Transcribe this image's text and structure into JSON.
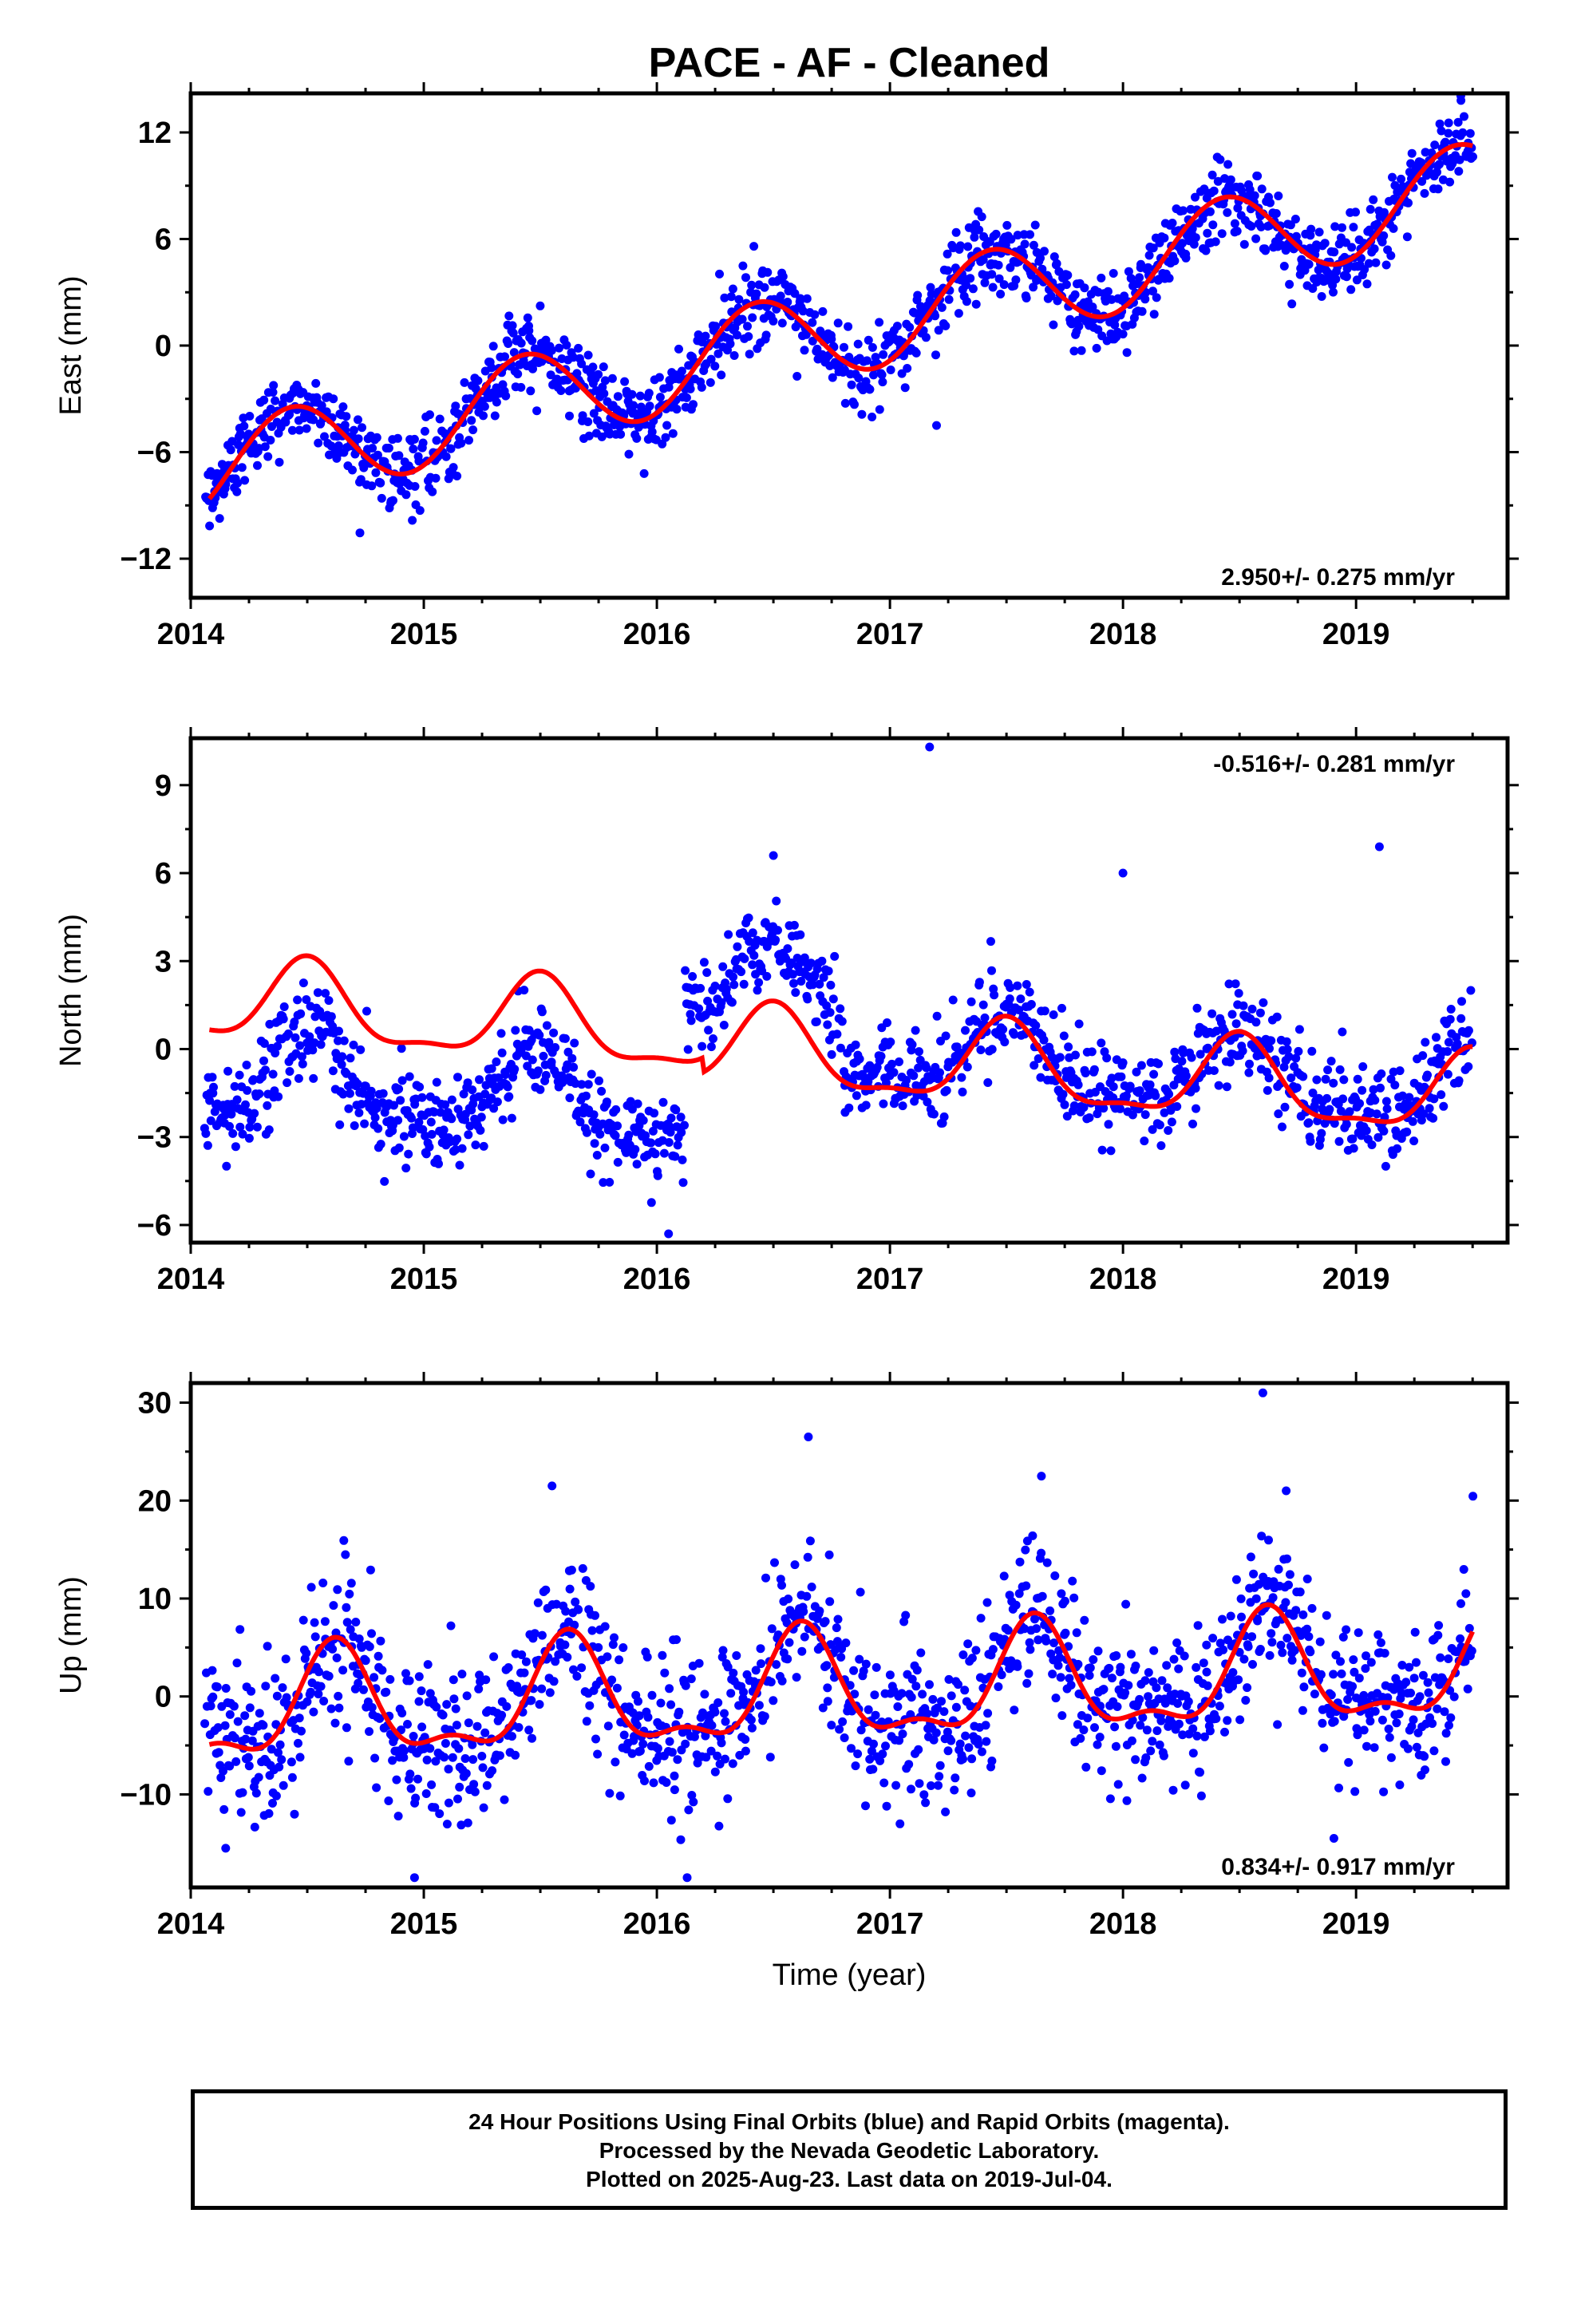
{
  "title": "PACE  - AF - Cleaned",
  "footer": {
    "line1": "24 Hour Positions Using Final Orbits (blue) and Rapid Orbits (magenta).",
    "line2": "Processed by the Nevada Geodetic Laboratory.",
    "line3": "Plotted on 2025-Aug-23. Last data on 2019-Jul-04."
  },
  "colors": {
    "points": "#0000ff",
    "fit": "#ff0000",
    "axis": "#000000"
  },
  "chart_data": [
    {
      "type": "scatter",
      "ylabel": "East (mm)",
      "xlabel": "",
      "xlim": [
        2014.0,
        2019.65
      ],
      "ylim": [
        -14.2,
        14.2
      ],
      "xticks": [
        2014,
        2015,
        2016,
        2017,
        2018,
        2019
      ],
      "yticks": [
        -12,
        -6,
        0,
        6,
        12
      ],
      "rate_label": "2.950+/- 0.275 mm/yr",
      "rate_position": "bottom-right",
      "fit": {
        "name": "fit",
        "t0": 2014.08,
        "t1": 2019.5,
        "offset": -7.1,
        "trend": 2.95,
        "annual_amp": 2.6,
        "annual_peak": 2014.43,
        "semiannual_amp": 0.0,
        "semiannual_peak": 2014.0,
        "steps": []
      },
      "series": [
        {
          "name": "Final Orbits",
          "color": "#0000ff",
          "t_start": 2014.06,
          "t_end": 2019.5,
          "count": 1550,
          "noise": 1.1,
          "gaps": [],
          "offset_adjust": [],
          "outliers": [
            [
              2015.45,
              1.1
            ],
            [
              2017.2,
              -4.5
            ],
            [
              2018.45,
              10.2
            ],
            [
              2019.45,
              13.8
            ]
          ]
        }
      ]
    },
    {
      "type": "scatter",
      "ylabel": "North (mm)",
      "xlabel": "",
      "xlim": [
        2014.0,
        2019.65
      ],
      "ylim": [
        -6.6,
        10.6
      ],
      "xticks": [
        2014,
        2015,
        2016,
        2017,
        2018,
        2019
      ],
      "yticks": [
        -6,
        -3,
        0,
        3,
        6,
        9
      ],
      "rate_label": "-0.516+/- 0.281 mm/yr",
      "rate_position": "top-right",
      "fit": {
        "name": "fit",
        "t0": 2014.08,
        "t1": 2019.5,
        "offset": 1.6,
        "trend": -0.52,
        "annual_amp": 1.35,
        "annual_peak": 2014.5,
        "semiannual_amp": 0.45,
        "semiannual_peak": 2014.5,
        "steps": [
          [
            2016.2,
            -0.5
          ]
        ]
      },
      "series": [
        {
          "name": "Final Orbits",
          "color": "#0000ff",
          "t_start": 2014.06,
          "t_end": 2019.5,
          "count": 1400,
          "noise": 0.8,
          "gaps": [],
          "offset_adjust": [
            [
              2014.0,
              2016.12,
              -2.7
            ],
            [
              2016.12,
              2016.8,
              2.0
            ],
            [
              2016.8,
              2019.6,
              0.3
            ]
          ],
          "outliers": [
            [
              2017.17,
              10.3
            ],
            [
              2019.1,
              6.9
            ],
            [
              2018.0,
              6.0
            ],
            [
              2016.5,
              6.6
            ],
            [
              2016.05,
              -6.3
            ]
          ]
        }
      ]
    },
    {
      "type": "scatter",
      "ylabel": "Up (mm)",
      "xlabel": "Time (year)",
      "xlim": [
        2014.0,
        2019.65
      ],
      "ylim": [
        -19.5,
        32.0
      ],
      "xticks": [
        2014,
        2015,
        2016,
        2017,
        2018,
        2019
      ],
      "yticks": [
        -10,
        0,
        10,
        20,
        30
      ],
      "rate_label": "0.834+/- 0.917 mm/yr",
      "rate_position": "bottom-right",
      "fit": {
        "name": "fit",
        "t0": 2014.08,
        "t1": 2019.5,
        "offset": -1.8,
        "trend": 0.83,
        "annual_amp": 5.2,
        "annual_peak": 2014.62,
        "semiannual_amp": 2.2,
        "semiannual_peak": 2014.62,
        "steps": []
      },
      "series": [
        {
          "name": "Final Orbits",
          "color": "#0000ff",
          "t_start": 2014.06,
          "t_end": 2019.5,
          "count": 1500,
          "noise": 4.0,
          "gaps": [],
          "offset_adjust": [],
          "outliers": [
            [
              2018.6,
              31.0
            ],
            [
              2016.65,
              26.5
            ],
            [
              2015.55,
              21.5
            ],
            [
              2017.65,
              22.5
            ],
            [
              2018.7,
              21.0
            ],
            [
              2014.96,
              -18.5
            ],
            [
              2016.13,
              -18.5
            ],
            [
              2014.15,
              -15.5
            ]
          ]
        }
      ]
    }
  ]
}
